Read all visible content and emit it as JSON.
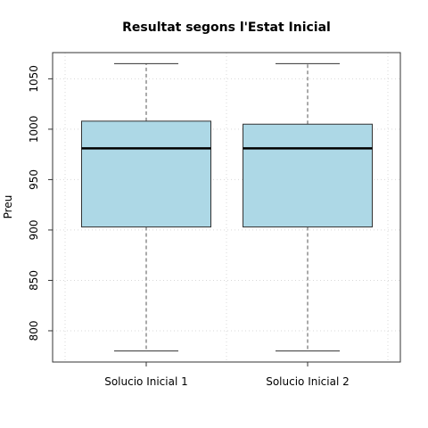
{
  "chart_data": {
    "type": "boxplot",
    "title": "Resultat segons l'Estat Inicial",
    "xlabel": "",
    "ylabel": "Preu",
    "ylim": [
      770,
      1075
    ],
    "yticks": [
      800,
      850,
      900,
      950,
      1000,
      1050
    ],
    "grid": true,
    "colors": {
      "box_fill": "#add8e6",
      "median": "#000000",
      "grid": "#d9d9d9"
    },
    "categories": [
      "Solucio Inicial 1",
      "Solucio Inicial 2"
    ],
    "boxes": [
      {
        "label": "Solucio Inicial 1",
        "whisker_low": 780,
        "q1": 903,
        "median": 981,
        "q3": 1008,
        "whisker_high": 1065
      },
      {
        "label": "Solucio Inicial 2",
        "whisker_low": 780,
        "q1": 903,
        "median": 981,
        "q3": 1005,
        "whisker_high": 1065
      }
    ]
  }
}
